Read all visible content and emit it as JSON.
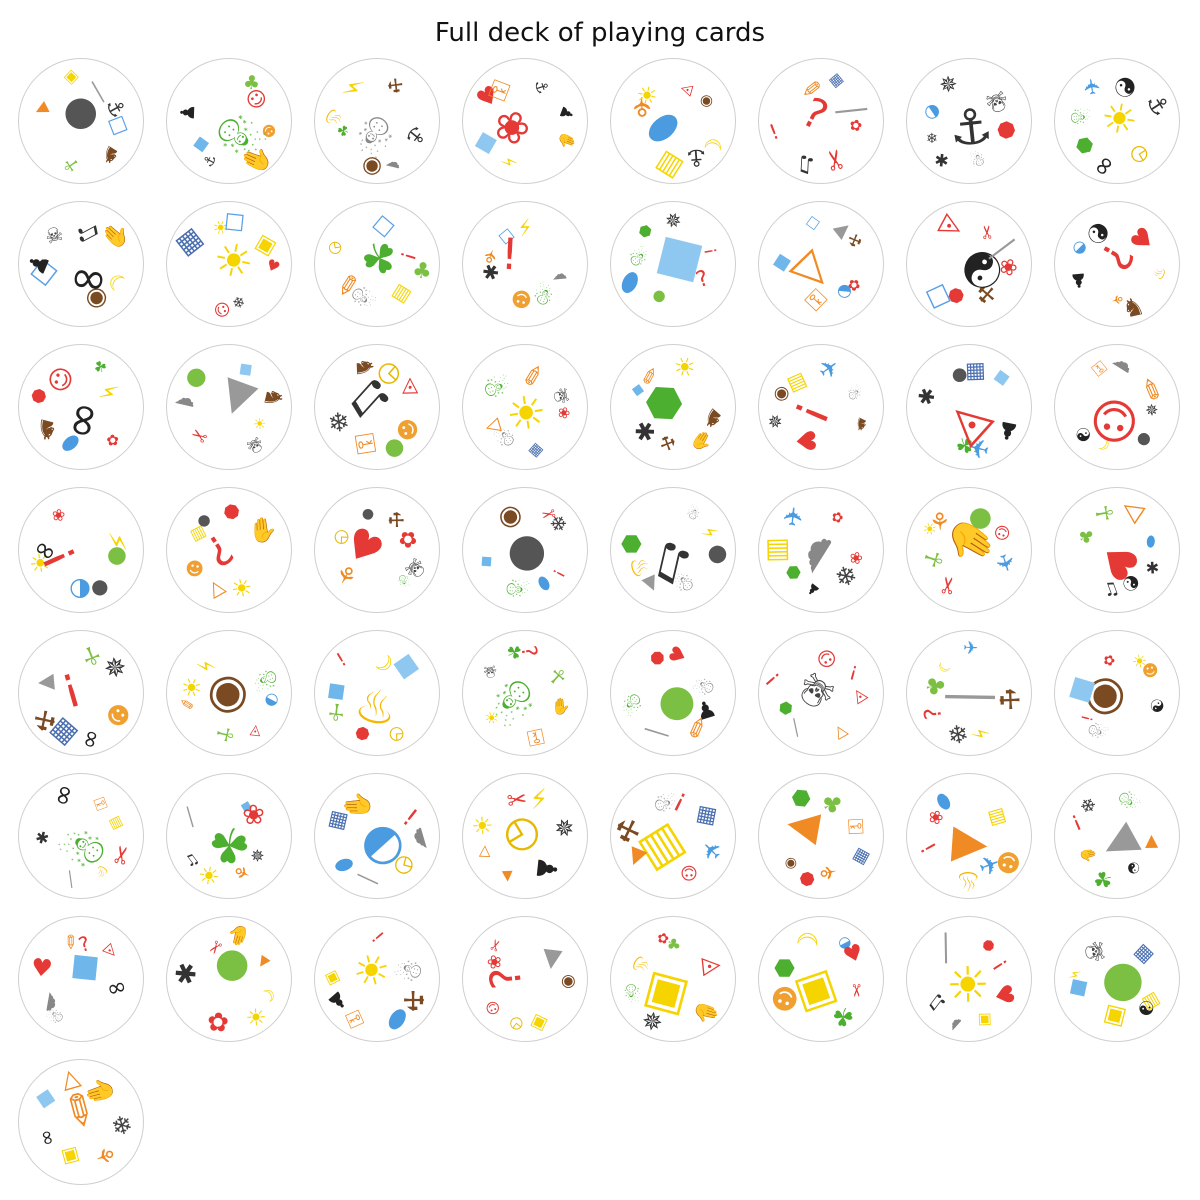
{
  "title": "Full deck of playing cards",
  "symbols": {
    "bottle": {
      "glyph": "☐",
      "color": "#5aa0e6"
    },
    "bison": {
      "glyph": "♞",
      "color": "#7a4a22"
    },
    "cactus": {
      "glyph": "☥",
      "color": "#7cc043"
    },
    "bomb": {
      "glyph": "●",
      "color": "#555555"
    },
    "carrot": {
      "glyph": "▼",
      "color": "#f08a24"
    },
    "cheese": {
      "glyph": "▣",
      "color": "#f5d400"
    },
    "candle": {
      "glyph": "│",
      "color": "#999999"
    },
    "anchor": {
      "glyph": "⚓",
      "color": "#333333"
    },
    "hand": {
      "glyph": "✋",
      "color": "#f5d400"
    },
    "drop": {
      "glyph": "◆",
      "color": "#6fb7ea"
    },
    "dobble": {
      "glyph": "♟",
      "color": "#222222"
    },
    "dragon": {
      "glyph": "☃",
      "color": "#4caf30"
    },
    "tree": {
      "glyph": "♣",
      "color": "#7cc043"
    },
    "clown": {
      "glyph": "☺",
      "color": "#e53935"
    },
    "dog": {
      "glyph": "☻",
      "color": "#f0a030"
    },
    "ghost": {
      "glyph": "☁",
      "color": "#888888"
    },
    "eye": {
      "glyph": "◉",
      "color": "#7a4a22"
    },
    "clover": {
      "glyph": "☘",
      "color": "#4caf30"
    },
    "flame": {
      "glyph": "♨",
      "color": "#f5b800"
    },
    "ladybug": {
      "glyph": "❀",
      "color": "#e53935"
    },
    "lightning": {
      "glyph": "⚡",
      "color": "#f5d400"
    },
    "ice": {
      "glyph": "■",
      "color": "#8ec8f0"
    },
    "heart": {
      "glyph": "♥",
      "color": "#e53935"
    },
    "key": {
      "glyph": "⚿",
      "color": "#f08a24"
    },
    "moon": {
      "glyph": "☾",
      "color": "#f5d400"
    },
    "bacteria": {
      "glyph": "⬬",
      "color": "#4a9be0"
    },
    "leaf": {
      "glyph": "⚘",
      "color": "#f08a24"
    },
    "lock": {
      "glyph": "▤",
      "color": "#f5d400"
    },
    "bulb": {
      "glyph": "☀",
      "color": "#f5d400"
    },
    "lips": {
      "glyph": "◬",
      "color": "#e53935"
    },
    "pencil": {
      "glyph": "✎",
      "color": "#f08a24"
    },
    "flower": {
      "glyph": "✿",
      "color": "#e53935"
    },
    "scissors": {
      "glyph": "✂",
      "color": "#e53935"
    },
    "clef": {
      "glyph": "♫",
      "color": "#333333"
    },
    "question": {
      "glyph": "?",
      "color": "#e53935"
    },
    "exclaim": {
      "glyph": "!",
      "color": "#e53935"
    },
    "car": {
      "glyph": "▦",
      "color": "#4a6fb0"
    },
    "stop": {
      "glyph": "⯃",
      "color": "#e53935"
    },
    "snowman": {
      "glyph": "☃",
      "color": "#888888"
    },
    "spider": {
      "glyph": "✱",
      "color": "#333333"
    },
    "snowflake": {
      "glyph": "❄",
      "color": "#444444"
    },
    "dolphin": {
      "glyph": "◒",
      "color": "#4a9be0"
    },
    "web": {
      "glyph": "✵",
      "color": "#333333"
    },
    "sun": {
      "glyph": "☀",
      "color": "#f5d400"
    },
    "clock": {
      "glyph": "◷",
      "color": "#e6b800"
    },
    "sunglasses": {
      "glyph": "∞",
      "color": "#222222"
    },
    "turtle": {
      "glyph": "⬢",
      "color": "#4caf30"
    },
    "bird": {
      "glyph": "✈",
      "color": "#4a9be0"
    },
    "yinyang": {
      "glyph": "☯",
      "color": "#222222"
    },
    "skull": {
      "glyph": "☠",
      "color": "#444444"
    },
    "igloo": {
      "glyph": "▲",
      "color": "#999999"
    },
    "hammer": {
      "glyph": "⚒",
      "color": "#7a4a22"
    },
    "apple": {
      "glyph": "●",
      "color": "#7cc043"
    },
    "cat": {
      "glyph": "△",
      "color": "#f08a24"
    },
    "zebra": {
      "glyph": "☰",
      "color": "#444444"
    },
    "stopsign": {
      "glyph": "⯃",
      "color": "#e53935"
    },
    "target": {
      "glyph": "◎",
      "color": "#e53935"
    }
  },
  "cards": [
    [
      "bottle",
      "bison",
      "cactus",
      "bomb",
      "carrot",
      "cheese",
      "candle",
      "anchor"
    ],
    [
      "dog",
      "hand",
      "anchor",
      "drop",
      "dobble",
      "dragon",
      "tree",
      "clown"
    ],
    [
      "anchor",
      "ghost",
      "eye",
      "clover",
      "flame",
      "lightning",
      "hammer",
      "snowman"
    ],
    [
      "hand",
      "ladybug",
      "lightning",
      "ice",
      "heart",
      "key",
      "anchor",
      "dobble"
    ],
    [
      "moon",
      "anchor",
      "lock",
      "bacteria",
      "leaf",
      "bulb",
      "lips",
      "eye"
    ],
    [
      "flower",
      "scissors",
      "clef",
      "exclaim",
      "question",
      "pencil",
      "car",
      "candle"
    ],
    [
      "stop",
      "snowman",
      "spider",
      "snowflake",
      "dolphin",
      "web",
      "anchor",
      "skull"
    ],
    [
      "sun",
      "clock",
      "sunglasses",
      "turtle",
      "dragon",
      "bird",
      "yinyang",
      "anchor"
    ],
    [
      "moon",
      "eye",
      "sunglasses",
      "bottle",
      "dobble",
      "skull",
      "clef",
      "hand"
    ],
    [
      "heart",
      "snowflake",
      "clown",
      "bulb",
      "car",
      "sun",
      "bottle",
      "cheese"
    ],
    [
      "tree",
      "lock",
      "snowman",
      "pencil",
      "clock",
      "clover",
      "bottle",
      "exclaim"
    ],
    [
      "ghost",
      "dragon",
      "dog",
      "spider",
      "leaf",
      "bottle",
      "lightning",
      "exclaim"
    ],
    [
      "question",
      "ice",
      "apple",
      "bacteria",
      "dragon",
      "turtle",
      "web",
      "exclaim"
    ],
    [
      "flower",
      "dolphin",
      "key",
      "cat",
      "drop",
      "bottle",
      "igloo",
      "hammer"
    ],
    [
      "ladybug",
      "hammer",
      "stop",
      "bottle",
      "yinyang",
      "lips",
      "scissors",
      "candle"
    ],
    [
      "flame",
      "bison",
      "leaf",
      "dobble",
      "dolphin",
      "yinyang",
      "question",
      "heart"
    ],
    [
      "sunglasses",
      "flower",
      "bacteria",
      "bison",
      "stop",
      "clown",
      "clover",
      "lightning"
    ],
    [
      "sun",
      "skull",
      "igloo",
      "scissors",
      "ghost",
      "apple",
      "ice",
      "bison"
    ],
    [
      "dog",
      "apple",
      "key",
      "snowflake",
      "clef",
      "bison",
      "clock",
      "lips"
    ],
    [
      "ladybug",
      "car",
      "snowman",
      "cat",
      "dragon",
      "bulb",
      "pencil",
      "skull"
    ],
    [
      "bison",
      "hand",
      "hammer",
      "spider",
      "drop",
      "pencil",
      "bulb",
      "turtle"
    ],
    [
      "bison",
      "exclaim",
      "heart",
      "web",
      "eye",
      "lock",
      "bird",
      "snowman"
    ],
    [
      "dobble",
      "bird",
      "clover",
      "lips",
      "spider",
      "bomb",
      "car",
      "ice"
    ],
    [
      "web",
      "bomb",
      "moon",
      "yinyang",
      "clown",
      "key",
      "ghost",
      "pencil"
    ],
    [
      "apple",
      "bomb",
      "dolphin",
      "bulb",
      "sunglasses",
      "ladybug",
      "exclaim",
      "lightning"
    ],
    [
      "question",
      "sun",
      "cat",
      "dog",
      "lock",
      "bomb",
      "stop",
      "hand"
    ],
    [
      "skull",
      "dragon",
      "heart",
      "leaf",
      "clock",
      "bomb",
      "hammer",
      "flower"
    ],
    [
      "exclaim",
      "bacteria",
      "dragon",
      "drop",
      "bomb",
      "eye",
      "scissors",
      "snowflake"
    ],
    [
      "bomb",
      "snowman",
      "igloo",
      "flame",
      "turtle",
      "clef",
      "snowman",
      "lightning"
    ],
    [
      "ladybug",
      "snowflake",
      "dobble",
      "turtle",
      "lock",
      "bird",
      "flower",
      "ghost"
    ],
    [
      "bird",
      "hand",
      "scissors",
      "cactus",
      "bulb",
      "leaf",
      "apple",
      "clown"
    ],
    [
      "spider",
      "yinyang",
      "clef",
      "heart",
      "tree",
      "cactus",
      "cat",
      "bacteria"
    ],
    [
      "dog",
      "sunglasses",
      "car",
      "hammer",
      "igloo",
      "exclaim",
      "cactus",
      "web"
    ],
    [
      "dolphin",
      "lips",
      "cactus",
      "pencil",
      "sun",
      "lightning",
      "eye",
      "dragon"
    ],
    [
      "flame",
      "clock",
      "stop",
      "cactus",
      "drop",
      "exclaim",
      "moon",
      "ice"
    ],
    [
      "hand",
      "key",
      "dragon",
      "bulb",
      "skull",
      "clover",
      "question",
      "cactus"
    ],
    [
      "dobble",
      "pencil",
      "candle",
      "dragon",
      "apple",
      "stop",
      "heart",
      "snowman"
    ],
    [
      "lips",
      "cat",
      "candle",
      "turtle",
      "exclaim",
      "skull",
      "clown",
      "exclaim"
    ],
    [
      "hammer",
      "lightning",
      "snowflake",
      "question",
      "tree",
      "moon",
      "bird",
      "candle"
    ],
    [
      "yinyang",
      "eye",
      "snowman",
      "exclaim",
      "ice",
      "flower",
      "bulb",
      "dog"
    ],
    [
      "scissors",
      "flame",
      "candle",
      "dragon",
      "spider",
      "sunglasses",
      "key",
      "lock"
    ],
    [
      "web",
      "leaf",
      "sun",
      "clef",
      "candle",
      "clover",
      "drop",
      "ladybug"
    ],
    [
      "ghost",
      "clock",
      "candle",
      "bacteria",
      "car",
      "hand",
      "dolphin",
      "exclaim"
    ],
    [
      "clock",
      "dobble",
      "carrot",
      "cat",
      "bulb",
      "scissors",
      "lightning",
      "web"
    ],
    [
      "bird",
      "clown",
      "lock",
      "carrot",
      "hammer",
      "snowman",
      "exclaim",
      "car"
    ],
    [
      "car",
      "leaf",
      "stop",
      "eye",
      "carrot",
      "turtle",
      "tree",
      "key"
    ],
    [
      "dog",
      "bird",
      "flame",
      "exclaim",
      "ladybug",
      "bacteria",
      "carrot",
      "lock"
    ],
    [
      "carrot",
      "yinyang",
      "clover",
      "hand",
      "exclaim",
      "snowflake",
      "dragon",
      "igloo"
    ],
    [
      "sunglasses",
      "drop",
      "snowman",
      "ghost",
      "heart",
      "pencil",
      "question",
      "lips"
    ],
    [
      "moon",
      "sun",
      "flower",
      "apple",
      "spider",
      "scissors",
      "hand",
      "carrot"
    ],
    [
      "hammer",
      "bacteria",
      "key",
      "dobble",
      "cheese",
      "sun",
      "exclaim",
      "snowman"
    ],
    [
      "eye",
      "cheese",
      "clock",
      "clown",
      "ladybug",
      "scissors",
      "question",
      "igloo"
    ],
    [
      "cheese",
      "hand",
      "web",
      "dragon",
      "flame",
      "flower",
      "tree",
      "lips"
    ],
    [
      "scissors",
      "clover",
      "cheese",
      "dog",
      "turtle",
      "moon",
      "dolphin",
      "heart"
    ],
    [
      "heart",
      "cheese",
      "ghost",
      "clef",
      "bulb",
      "candle",
      "stop",
      "exclaim"
    ],
    [
      "lock",
      "yinyang",
      "cheese",
      "drop",
      "lightning",
      "skull",
      "apple",
      "car"
    ],
    [
      "snowflake",
      "leaf",
      "cheese",
      "sunglasses",
      "ice",
      "cat",
      "hand",
      "pencil"
    ]
  ]
}
